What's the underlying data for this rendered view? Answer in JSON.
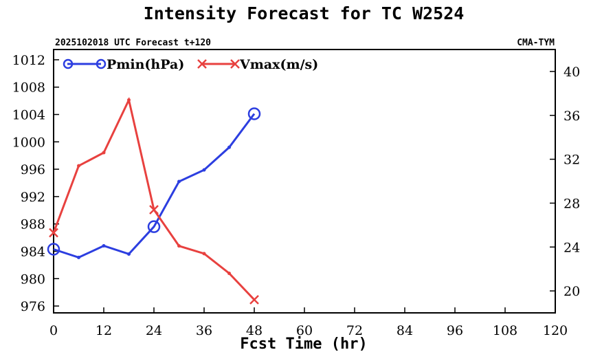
{
  "chart_data": {
    "type": "line",
    "title": "Intensity Forecast for TC W2524",
    "subtitle_left": "2025102018 UTC Forecast t+120",
    "subtitle_right": "CMA-TYM",
    "xlabel": "Fcst Time (hr)",
    "xlim": [
      0,
      120
    ],
    "xticks": [
      0,
      12,
      24,
      36,
      48,
      60,
      72,
      84,
      96,
      108,
      120
    ],
    "ylim_left": [
      975,
      1013.5
    ],
    "yticks_left": [
      976,
      980,
      984,
      988,
      992,
      996,
      1000,
      1004,
      1008,
      1012
    ],
    "ylim_right": [
      18,
      42
    ],
    "yticks_right": [
      20,
      24,
      28,
      32,
      36,
      40
    ],
    "series": [
      {
        "name": "Pmin(hPa)",
        "axis": "left",
        "color": "#2c3ee0",
        "marker": "circle",
        "x": [
          0,
          6,
          12,
          18,
          24,
          30,
          36,
          42,
          48
        ],
        "values": [
          984.3,
          983.1,
          984.8,
          983.6,
          987.6,
          994.2,
          995.9,
          999.2,
          1004.1
        ]
      },
      {
        "name": "Vmax(m/s)",
        "axis": "right",
        "color": "#e8413f",
        "marker": "x",
        "x": [
          0,
          6,
          12,
          18,
          24,
          30,
          36,
          42,
          48
        ],
        "values": [
          25.3,
          31.4,
          32.6,
          37.4,
          27.4,
          24.1,
          23.4,
          21.6,
          19.2
        ]
      }
    ],
    "legend": "top-left"
  }
}
